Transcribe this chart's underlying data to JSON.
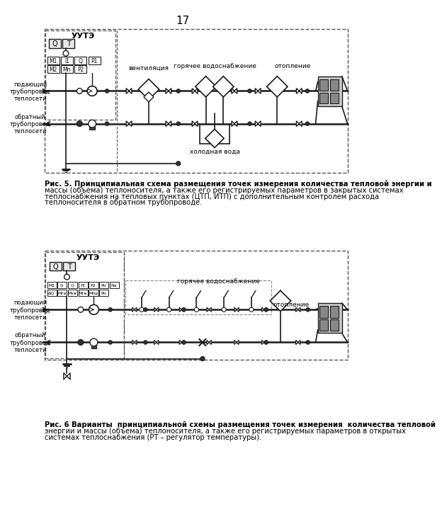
{
  "page_number": "17",
  "background_color": "#ffffff",
  "text_color": "#000000",
  "fig_width": 6.4,
  "fig_height": 9.05,
  "uuts_label": "УУТЭ",
  "gvs_label": "горячее водоснабжение",
  "otoplenie_label": "отопление",
  "ventilacia_label": "вентиляция",
  "xvoda_label": "холодная вода",
  "podvod_label": "подающий\nтрубопровод\nтеплосети",
  "obrat_label": "обратный\nтрубопровод\nтеплосети",
  "line_color": "#1a1a1a",
  "dashed_color": "#555555",
  "caption5_lines": [
    "Рис. 5. Принципиальная схема размещения точек измерения количества тепловой энергии и",
    "массы (объема) теплоносителя, а также его регистрируемых параметров в закрытых системах",
    "теплоснабжения на тепловых пунктах (ЦТП, ИТП) с дополнительным контролем расхода",
    "теплоносителя в обратном трубопроводе."
  ],
  "caption6_lines": [
    "Рис. 6 Варианты  принципиальной схемы размещения точек измерения  количества тепловой",
    "энергии и массы (объема) теплоносителя, а также его регистрируемых параметров в открытых",
    "системах теплоснабжения (РТ – регулятор температуры)."
  ]
}
